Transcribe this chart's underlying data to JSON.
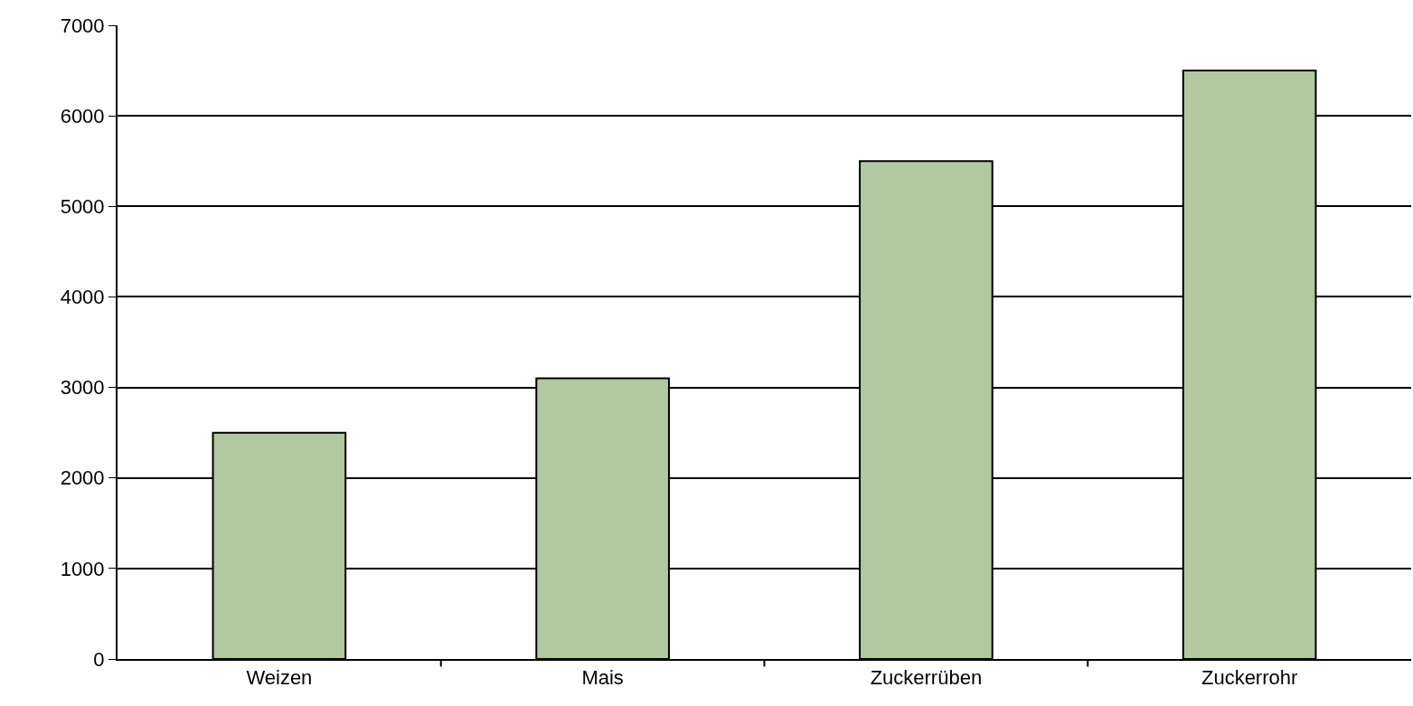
{
  "chart_data": {
    "type": "bar",
    "categories": [
      "Weizen",
      "Mais",
      "Zuckerrüben",
      "Zuckerrohr"
    ],
    "values": [
      2500,
      3100,
      5500,
      6500
    ],
    "color": "#b2c8a0",
    "ylim": [
      0,
      7000
    ],
    "yticks": [
      0,
      1000,
      2000,
      3000,
      4000,
      5000,
      6000,
      7000
    ],
    "grid": "y"
  }
}
